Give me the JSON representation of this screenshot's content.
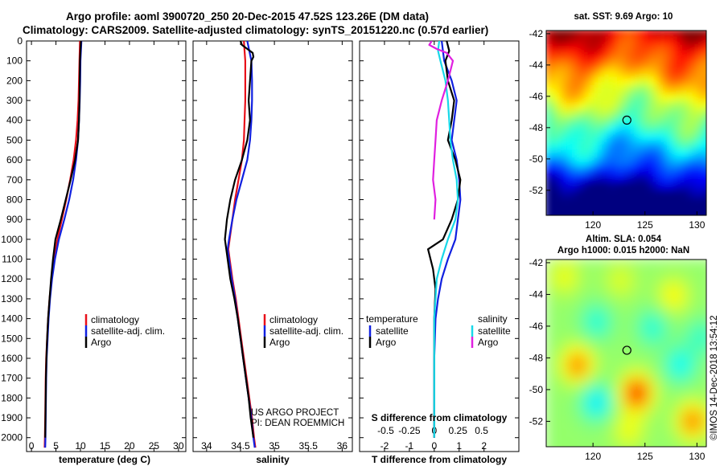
{
  "header": {
    "line1": "Argo profile: aoml 3900720_250 20-Dec-2015 47.52S 123.26E (DM data)",
    "line2": "Climatology: CARS2009. Satellite-adjusted climatology: synTS_20151220.nc (0.57d earlier)"
  },
  "colors": {
    "climatology": "#e8101a",
    "satellite": "#1020e0",
    "argo": "#000000",
    "s_satellite": "#18d8e8",
    "s_argo": "#e020e0"
  },
  "chart_data": [
    {
      "type": "line",
      "panel": "temperature",
      "xlabel": "temperature (deg C)",
      "ylabel": "",
      "xlim": [
        -1,
        31.5
      ],
      "ylim": [
        2070,
        0
      ],
      "xticks": [
        0,
        5,
        10,
        15,
        20,
        25,
        30
      ],
      "yticks": [
        0,
        100,
        200,
        300,
        400,
        500,
        600,
        700,
        800,
        900,
        1000,
        1100,
        1200,
        1300,
        1400,
        1500,
        1600,
        1700,
        1800,
        1900,
        2000
      ],
      "ytick_labels": [
        "0",
        "100",
        "200",
        "300",
        "400",
        "500",
        "600",
        "700",
        "800",
        "900",
        "1000",
        "1100",
        "1200",
        "1300",
        "1400",
        "1500",
        "1600",
        "1700",
        "1800",
        "1900",
        "2000"
      ],
      "legend": [
        "climatology",
        "satellite-adj. clim.",
        "Argo"
      ],
      "series": [
        {
          "name": "climatology",
          "color_key": "climatology",
          "x": [
            9.9,
            9.85,
            9.8,
            9.7,
            9.6,
            9.4,
            9.1,
            8.6,
            7.9,
            7.1,
            6.2,
            5.3,
            4.6,
            4.1,
            3.7,
            3.4,
            3.2,
            3.0,
            2.9,
            2.85,
            2.8,
            2.75,
            2.7
          ],
          "y": [
            0,
            50,
            100,
            200,
            300,
            400,
            500,
            600,
            700,
            800,
            900,
            1000,
            1100,
            1200,
            1300,
            1400,
            1500,
            1600,
            1700,
            1800,
            1900,
            2000,
            2050
          ]
        },
        {
          "name": "satellite-adj. clim.",
          "color_key": "satellite",
          "x": [
            10.2,
            10.1,
            10.0,
            9.95,
            9.85,
            9.7,
            9.5,
            9.1,
            8.5,
            7.7,
            6.7,
            5.6,
            4.8,
            4.2,
            3.8,
            3.5,
            3.3,
            3.1,
            3.0,
            2.95,
            2.9,
            2.85,
            2.8
          ],
          "y": [
            0,
            50,
            100,
            200,
            300,
            400,
            500,
            600,
            700,
            800,
            900,
            1000,
            1100,
            1200,
            1300,
            1400,
            1500,
            1600,
            1700,
            1800,
            1900,
            2000,
            2050
          ]
        },
        {
          "name": "Argo",
          "color_key": "argo",
          "x": [
            10.1,
            10.0,
            9.9,
            9.85,
            9.8,
            9.7,
            9.5,
            8.9,
            8.0,
            7.0,
            6.0,
            4.9,
            4.4,
            4.0,
            3.7,
            3.4,
            3.2,
            3.05,
            2.95,
            2.9,
            2.85,
            2.8
          ],
          "y": [
            0,
            50,
            100,
            200,
            300,
            400,
            500,
            600,
            700,
            800,
            900,
            1000,
            1100,
            1200,
            1300,
            1400,
            1500,
            1600,
            1700,
            1800,
            1900,
            2000
          ]
        }
      ]
    },
    {
      "type": "line",
      "panel": "salinity",
      "xlabel": "salinity",
      "xlim": [
        33.8,
        36.15
      ],
      "ylim": [
        2070,
        0
      ],
      "xticks": [
        34,
        34.5,
        35,
        35.5,
        36
      ],
      "xtick_labels": [
        "34",
        "34.5",
        "35",
        "35.5",
        "36"
      ],
      "legend": [
        "climatology",
        "satellite-adj. clim.",
        "Argo"
      ],
      "series": [
        {
          "name": "climatology",
          "color_key": "climatology",
          "x": [
            34.55,
            34.56,
            34.57,
            34.57,
            34.57,
            34.56,
            34.55,
            34.52,
            34.47,
            34.42,
            34.38,
            34.34,
            34.32,
            34.38,
            34.43,
            34.47,
            34.51,
            34.55,
            34.59,
            34.63,
            34.67,
            34.7,
            34.72
          ],
          "y": [
            0,
            50,
            100,
            200,
            300,
            400,
            500,
            600,
            700,
            800,
            900,
            1000,
            1050,
            1200,
            1300,
            1400,
            1500,
            1600,
            1700,
            1800,
            1900,
            2000,
            2050
          ]
        },
        {
          "name": "satellite-adj. clim.",
          "color_key": "satellite",
          "x": [
            34.6,
            34.63,
            34.66,
            34.67,
            34.67,
            34.66,
            34.64,
            34.6,
            34.52,
            34.44,
            34.38,
            34.33,
            34.31,
            34.37,
            34.42,
            34.46,
            34.5,
            34.54,
            34.58,
            34.62,
            34.66,
            34.69,
            34.71
          ],
          "y": [
            0,
            50,
            100,
            200,
            300,
            400,
            500,
            600,
            700,
            800,
            900,
            1000,
            1050,
            1200,
            1300,
            1400,
            1500,
            1600,
            1700,
            1800,
            1900,
            2000,
            2050
          ]
        },
        {
          "name": "Argo",
          "color_key": "argo",
          "x": [
            34.5,
            34.52,
            34.6,
            34.68,
            34.69,
            34.66,
            34.64,
            34.62,
            34.64,
            34.6,
            34.52,
            34.42,
            34.35,
            34.3,
            34.27,
            34.29,
            34.35,
            34.41,
            34.46,
            34.5,
            34.54,
            34.58,
            34.62,
            34.65,
            34.69
          ],
          "y": [
            0,
            20,
            40,
            60,
            80,
            100,
            200,
            300,
            400,
            500,
            600,
            700,
            800,
            900,
            1000,
            1050,
            1200,
            1300,
            1400,
            1500,
            1600,
            1700,
            1800,
            1900,
            2000
          ]
        }
      ]
    },
    {
      "type": "line",
      "panel": "difference",
      "xlabel": "T difference from climatology",
      "xlabel_top": "S difference from climatology",
      "xlim": [
        -3,
        3.4
      ],
      "ylim": [
        2070,
        0
      ],
      "xticks": [
        -2,
        -1,
        0,
        1,
        2
      ],
      "xtick_labels": [
        "-2",
        "-1",
        "0",
        "1",
        "2"
      ],
      "top_ticks": [
        -1.95,
        -1.0,
        0,
        0.95,
        1.9
      ],
      "top_tick_labels": [
        "-0.5",
        "-0.25",
        "0",
        "0.25",
        "0.5"
      ],
      "legend_left_title": "temperature",
      "legend_right_title": "salinity",
      "legend_left": [
        "satellite",
        "Argo"
      ],
      "legend_right": [
        "satellite",
        "Argo"
      ],
      "series": [
        {
          "name": "T satellite",
          "color_key": "satellite",
          "x": [
            0.3,
            0.35,
            0.4,
            0.7,
            0.9,
            0.8,
            0.7,
            0.9,
            1.0,
            1.05,
            0.95,
            0.85,
            0.55,
            0.3,
            0.15,
            0.05,
            0.0,
            0.0,
            0.0
          ],
          "y": [
            0,
            50,
            100,
            200,
            300,
            400,
            500,
            600,
            700,
            800,
            900,
            1000,
            1100,
            1200,
            1300,
            1400,
            1600,
            1800,
            2000
          ]
        },
        {
          "name": "T Argo",
          "color_key": "argo",
          "x": [
            0.5,
            0.6,
            0.45,
            0.55,
            0.8,
            0.7,
            0.55,
            0.85,
            1.05,
            0.95,
            0.7,
            0.35,
            -0.25,
            -0.05,
            0.05,
            0.0,
            0.0,
            0.0,
            0.0
          ],
          "y": [
            0,
            50,
            100,
            200,
            300,
            400,
            500,
            600,
            700,
            800,
            900,
            1000,
            1050,
            1150,
            1250,
            1400,
            1600,
            1800,
            2000
          ]
        },
        {
          "name": "S satellite",
          "color_key": "s_satellite",
          "x": [
            0.2,
            0.15,
            0.25,
            0.45,
            0.55,
            0.6,
            0.65,
            0.75,
            0.9,
            0.95,
            0.85,
            0.55,
            0.3,
            0.1,
            0.05,
            0.0,
            0.0,
            0.0
          ],
          "y": [
            0,
            50,
            100,
            200,
            300,
            400,
            500,
            600,
            700,
            800,
            900,
            1000,
            1100,
            1200,
            1300,
            1400,
            1700,
            2000
          ]
        },
        {
          "name": "S Argo",
          "color_key": "s_argo",
          "x": [
            -0.1,
            -0.2,
            0.1,
            0.5,
            0.75,
            0.55,
            0.3,
            0.1,
            0.05,
            0.0,
            -0.05,
            0.05,
            0.0
          ],
          "y": [
            0,
            20,
            40,
            60,
            100,
            200,
            300,
            400,
            500,
            600,
            700,
            800,
            900
          ]
        }
      ]
    },
    {
      "type": "heatmap",
      "panel": "sst-map",
      "title": "sat. SST: 9.69 Argo: 10",
      "xlim": [
        115.5,
        130.9
      ],
      "ylim": [
        -53.6,
        -41.8
      ],
      "xticks": [
        120,
        125,
        130
      ],
      "yticks": [
        -42,
        -44,
        -46,
        -48,
        -50,
        -52
      ],
      "marker": {
        "lon": 123.26,
        "lat": -47.52
      }
    },
    {
      "type": "heatmap",
      "panel": "sla-map",
      "title": "Altim. SLA: 0.054",
      "subtitle": "Argo h1000: 0.015 h2000: NaN",
      "xlim": [
        115.5,
        130.9
      ],
      "ylim": [
        -53.6,
        -41.8
      ],
      "xticks": [
        120,
        125,
        130
      ],
      "yticks": [
        -42,
        -44,
        -46,
        -48,
        -50,
        -52
      ],
      "marker": {
        "lon": 123.26,
        "lat": -47.52
      }
    }
  ],
  "annotations": {
    "project": "US ARGO PROJECT",
    "pi": "PI: DEAN ROEMMICH",
    "stamp": "©IMOS 14-Dec-2018 13:54:12"
  }
}
